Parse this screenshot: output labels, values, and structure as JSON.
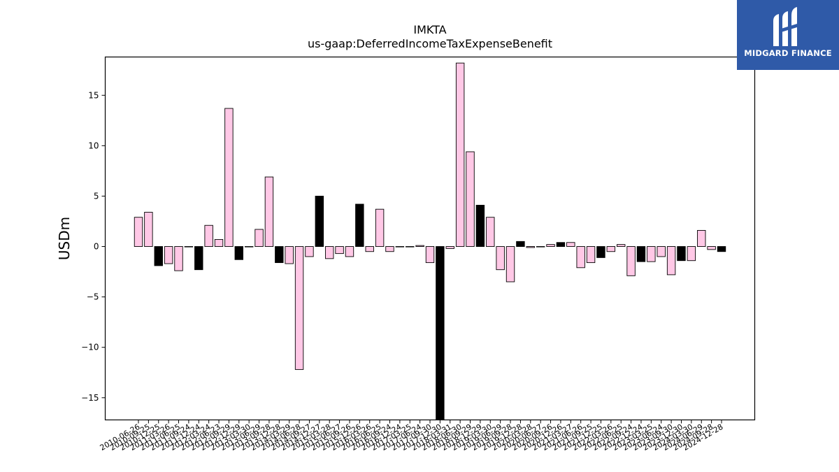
{
  "brand": {
    "name": "MIDGARD FINANCE",
    "bg_color": "#2f5aa8"
  },
  "chart_data": {
    "type": "bar",
    "title": "IMKTA",
    "subtitle": "us-gaap:DeferredIncomeTaxExpenseBenefit",
    "ylabel": "USDm",
    "xlabel": "",
    "ylim": [
      -17.2,
      18.8
    ],
    "yticks": [
      -15,
      -10,
      -5,
      0,
      5,
      10,
      15
    ],
    "grid": false,
    "colors": {
      "pink": "#ffc8e6",
      "black": "#000000"
    },
    "categories": [
      "2010-06-26",
      "2010-09-25",
      "2010-12-25",
      "2011-03-26",
      "2011-06-25",
      "2011-09-24",
      "2011-12-24",
      "2012-03-24",
      "2012-06-23",
      "2012-09-29",
      "2012-12-29",
      "2013-03-30",
      "2013-06-29",
      "2013-09-28",
      "2013-12-28",
      "2014-03-29",
      "2014-06-28",
      "2014-09-27",
      "2014-12-27",
      "2015-03-28",
      "2015-06-27",
      "2015-09-26",
      "2015-12-26",
      "2016-03-26",
      "2016-06-25",
      "2016-09-24",
      "2016-12-24",
      "2017-03-25",
      "2017-06-24",
      "2017-09-30",
      "2017-12-30",
      "2018-03-31",
      "2018-06-30",
      "2018-09-29",
      "2018-12-29",
      "2019-03-30",
      "2019-06-29",
      "2019-09-28",
      "2019-12-28",
      "2020-03-28",
      "2020-06-27",
      "2020-09-26",
      "2020-12-26",
      "2021-03-27",
      "2021-06-26",
      "2021-09-25",
      "2021-12-25",
      "2022-03-26",
      "2022-06-25",
      "2022-09-24",
      "2022-12-24",
      "2023-03-25",
      "2023-06-24",
      "2023-09-30",
      "2023-12-30",
      "2024-03-30",
      "2024-06-29",
      "2024-09-28",
      "2024-12-28"
    ],
    "values": [
      2.9,
      3.4,
      -1.9,
      -1.7,
      -2.4,
      0.0,
      -2.3,
      2.1,
      0.7,
      13.7,
      -1.3,
      0.0,
      1.7,
      6.9,
      -1.6,
      -1.7,
      -12.2,
      -1.0,
      5.0,
      -1.2,
      -0.7,
      -1.0,
      4.2,
      -0.5,
      3.7,
      -0.5,
      0.0,
      0.0,
      0.1,
      -1.6,
      -17.5,
      -0.2,
      18.2,
      9.4,
      4.1,
      2.9,
      -2.3,
      -3.5,
      0.5,
      -0.1,
      0.0,
      0.2,
      0.4,
      0.4,
      -2.1,
      -1.6,
      -1.1,
      -0.5,
      0.2,
      -2.9,
      -1.5,
      -1.5,
      -1.0,
      -2.8,
      -1.4,
      -1.4,
      1.6,
      -0.3,
      -0.5
    ],
    "bar_colors": [
      "pink",
      "pink",
      "black",
      "pink",
      "pink",
      "pink",
      "black",
      "pink",
      "pink",
      "pink",
      "black",
      "pink",
      "pink",
      "pink",
      "black",
      "pink",
      "pink",
      "pink",
      "black",
      "pink",
      "pink",
      "pink",
      "black",
      "pink",
      "pink",
      "pink",
      "black",
      "pink",
      "pink",
      "pink",
      "black",
      "pink",
      "pink",
      "pink",
      "black",
      "pink",
      "pink",
      "pink",
      "black",
      "pink",
      "pink",
      "pink",
      "black",
      "pink",
      "pink",
      "pink",
      "black",
      "pink",
      "pink",
      "pink",
      "black",
      "pink",
      "pink",
      "pink",
      "black",
      "pink",
      "pink",
      "pink",
      "black"
    ]
  }
}
